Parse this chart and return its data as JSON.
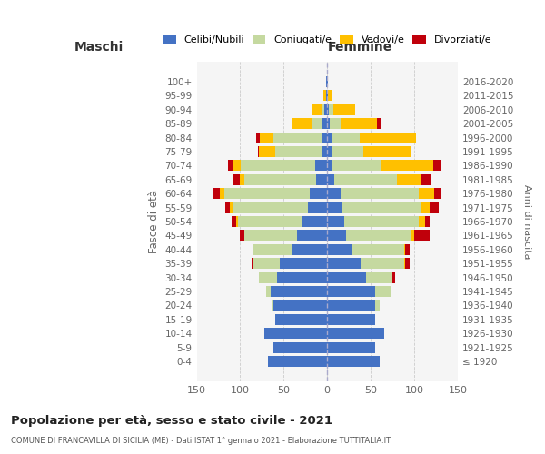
{
  "age_groups": [
    "100+",
    "95-99",
    "90-94",
    "85-89",
    "80-84",
    "75-79",
    "70-74",
    "65-69",
    "60-64",
    "55-59",
    "50-54",
    "45-49",
    "40-44",
    "35-39",
    "30-34",
    "25-29",
    "20-24",
    "15-19",
    "10-14",
    "5-9",
    "0-4"
  ],
  "birth_years": [
    "≤ 1920",
    "1921-1925",
    "1926-1930",
    "1931-1935",
    "1936-1940",
    "1941-1945",
    "1946-1950",
    "1951-1955",
    "1956-1960",
    "1961-1965",
    "1966-1970",
    "1971-1975",
    "1976-1980",
    "1981-1985",
    "1986-1990",
    "1991-1995",
    "1996-2000",
    "2001-2005",
    "2006-2010",
    "2011-2015",
    "2016-2020"
  ],
  "colors": {
    "celibe": "#4472c4",
    "coniugato": "#c5d9a0",
    "vedovo": "#ffc000",
    "divorziato": "#c0000b"
  },
  "maschi": {
    "celibe": [
      1,
      1,
      3,
      5,
      7,
      5,
      14,
      13,
      20,
      22,
      28,
      35,
      40,
      55,
      58,
      65,
      62,
      60,
      72,
      62,
      68
    ],
    "coniugato": [
      0,
      0,
      4,
      13,
      55,
      55,
      85,
      82,
      98,
      87,
      75,
      60,
      45,
      30,
      20,
      5,
      2,
      0,
      0,
      0,
      0
    ],
    "vedovo": [
      0,
      3,
      10,
      22,
      15,
      18,
      10,
      5,
      5,
      3,
      2,
      0,
      0,
      0,
      0,
      0,
      0,
      0,
      0,
      0,
      0
    ],
    "divorziato": [
      0,
      0,
      0,
      0,
      5,
      2,
      5,
      8,
      8,
      5,
      5,
      5,
      0,
      2,
      0,
      0,
      0,
      0,
      0,
      0,
      0
    ]
  },
  "femmine": {
    "nubile": [
      1,
      1,
      2,
      3,
      5,
      5,
      5,
      8,
      15,
      18,
      20,
      22,
      28,
      38,
      45,
      55,
      55,
      55,
      65,
      55,
      60
    ],
    "coniugata": [
      0,
      0,
      5,
      12,
      32,
      37,
      57,
      72,
      90,
      90,
      85,
      75,
      60,
      50,
      30,
      18,
      5,
      0,
      0,
      0,
      0
    ],
    "vedova": [
      0,
      5,
      25,
      42,
      65,
      55,
      60,
      28,
      18,
      10,
      8,
      3,
      2,
      2,
      0,
      0,
      0,
      0,
      0,
      0,
      0
    ],
    "divorziata": [
      0,
      0,
      0,
      5,
      0,
      0,
      8,
      12,
      8,
      10,
      5,
      18,
      5,
      5,
      3,
      0,
      0,
      0,
      0,
      0,
      0
    ]
  },
  "xlim": 150,
  "title": "Popolazione per età, sesso e stato civile - 2021",
  "subtitle": "COMUNE DI FRANCAVILLA DI SICILIA (ME) - Dati ISTAT 1° gennaio 2021 - Elaborazione TUTTITALIA.IT",
  "ylabel": "Fasce di età",
  "ylabel_right": "Anni di nascita",
  "xlabel_maschi": "Maschi",
  "xlabel_femmine": "Femmine",
  "bg_color": "#f5f5f5"
}
